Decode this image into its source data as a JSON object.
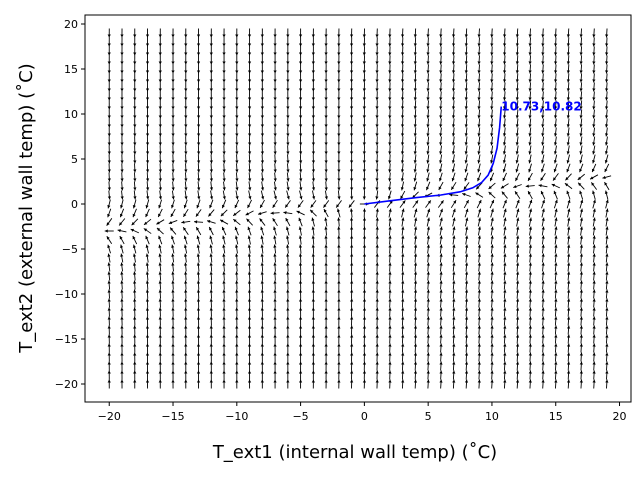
{
  "chart_data": {
    "type": "quiver",
    "xlabel": "T_ext1 (internal wall temp) ($^\\circ$C)",
    "ylabel": "T_ext2 (external wall temp) ($^\\circ$C)",
    "xlabel_display": "T_ext1 (internal wall temp) (˚C)",
    "ylabel_display": "T_ext2 (external wall temp) (˚C)",
    "xlim": [
      -21.9,
      20.9
    ],
    "ylim": [
      -22,
      21
    ],
    "xticks": [
      -20,
      -15,
      -10,
      -5,
      0,
      5,
      10,
      15,
      20
    ],
    "yticks": [
      -20,
      -15,
      -10,
      -5,
      0,
      5,
      10,
      15,
      20
    ],
    "xtick_labels": [
      "−20",
      "−15",
      "−10",
      "−5",
      "0",
      "5",
      "10",
      "15",
      "20"
    ],
    "ytick_labels": [
      "−20",
      "−15",
      "−10",
      "−5",
      "0",
      "5",
      "10",
      "15",
      "20"
    ],
    "grid": false,
    "vector_field": {
      "x_range": [
        -20,
        19
      ],
      "y_range": [
        -20,
        19
      ],
      "step": 1,
      "color": "#000000"
    },
    "trajectory": {
      "color": "#0000ff",
      "x": [
        0,
        2,
        4,
        6,
        7.5,
        8.5,
        9.2,
        9.7,
        10.1,
        10.4,
        10.6,
        10.73
      ],
      "y": [
        0,
        0.35,
        0.7,
        1.0,
        1.35,
        1.8,
        2.4,
        3.2,
        4.5,
        6.2,
        8.5,
        10.82
      ]
    },
    "annotation": {
      "text": "10.73,10.82",
      "x": 10.73,
      "y": 10.82,
      "color": "#0000ff"
    }
  }
}
